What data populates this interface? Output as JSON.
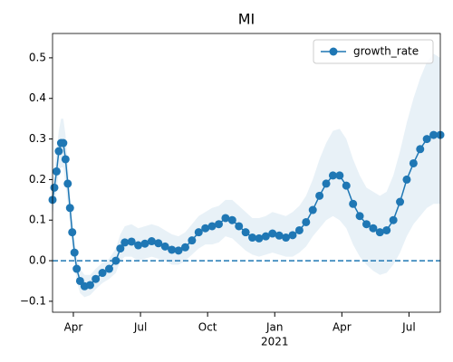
{
  "chart_data": {
    "type": "line",
    "title": "MI",
    "x": [
      0.07,
      0.15,
      0.25,
      0.35,
      0.45,
      0.55,
      0.65,
      0.75,
      0.85,
      0.95,
      1.05,
      1.15,
      1.3,
      1.5,
      1.75,
      2.0,
      2.3,
      2.6,
      2.9,
      3.1,
      3.3,
      3.6,
      3.9,
      4.2,
      4.5,
      4.8,
      5.1,
      5.4,
      5.7,
      6.0,
      6.3,
      6.6,
      6.9,
      7.2,
      7.5,
      7.8,
      8.1,
      8.4,
      8.7,
      9.0,
      9.3,
      9.6,
      9.9,
      10.2,
      10.5,
      10.8,
      11.1,
      11.4,
      11.7,
      12.0,
      12.3,
      12.6,
      12.9,
      13.2,
      13.5,
      13.8,
      14.1,
      14.4,
      14.7,
      15.0,
      15.3,
      15.6,
      15.9,
      16.2,
      16.5,
      16.8,
      17.1,
      17.4
    ],
    "series": [
      {
        "name": "growth_rate",
        "color": "#1f77b4",
        "values": [
          0.15,
          0.18,
          0.22,
          0.27,
          0.29,
          0.29,
          0.25,
          0.19,
          0.13,
          0.07,
          0.02,
          -0.02,
          -0.05,
          -0.063,
          -0.06,
          -0.045,
          -0.03,
          -0.02,
          0.0,
          0.03,
          0.045,
          0.047,
          0.038,
          0.042,
          0.048,
          0.043,
          0.035,
          0.027,
          0.025,
          0.033,
          0.05,
          0.07,
          0.08,
          0.085,
          0.09,
          0.105,
          0.1,
          0.085,
          0.07,
          0.057,
          0.055,
          0.06,
          0.067,
          0.062,
          0.057,
          0.063,
          0.075,
          0.095,
          0.125,
          0.16,
          0.19,
          0.21,
          0.21,
          0.185,
          0.14,
          0.11,
          0.09,
          0.08,
          0.07,
          0.075,
          0.1,
          0.145,
          0.2,
          0.24,
          0.275,
          0.3,
          0.31,
          0.31
        ]
      }
    ],
    "band": {
      "color": "#1f77b4",
      "upper": [
        0.19,
        0.22,
        0.27,
        0.32,
        0.35,
        0.35,
        0.31,
        0.24,
        0.17,
        0.1,
        0.05,
        0.01,
        -0.02,
        -0.035,
        -0.035,
        -0.02,
        -0.005,
        0.005,
        0.03,
        0.065,
        0.085,
        0.09,
        0.08,
        0.085,
        0.09,
        0.085,
        0.075,
        0.065,
        0.06,
        0.07,
        0.09,
        0.11,
        0.12,
        0.13,
        0.135,
        0.15,
        0.15,
        0.135,
        0.12,
        0.105,
        0.105,
        0.11,
        0.12,
        0.115,
        0.11,
        0.12,
        0.135,
        0.16,
        0.2,
        0.25,
        0.29,
        0.32,
        0.325,
        0.3,
        0.25,
        0.21,
        0.18,
        0.17,
        0.16,
        0.17,
        0.21,
        0.27,
        0.34,
        0.4,
        0.45,
        0.49,
        0.51,
        0.5
      ],
      "lower": [
        0.11,
        0.14,
        0.17,
        0.22,
        0.23,
        0.23,
        0.19,
        0.14,
        0.09,
        0.04,
        -0.01,
        -0.05,
        -0.08,
        -0.09,
        -0.085,
        -0.07,
        -0.055,
        -0.045,
        -0.03,
        0.0,
        0.01,
        0.01,
        0.0,
        0.005,
        0.01,
        0.005,
        0.0,
        -0.01,
        -0.01,
        0.0,
        0.015,
        0.03,
        0.04,
        0.04,
        0.045,
        0.06,
        0.055,
        0.04,
        0.025,
        0.015,
        0.01,
        0.015,
        0.02,
        0.015,
        0.01,
        0.01,
        0.02,
        0.035,
        0.06,
        0.08,
        0.1,
        0.11,
        0.1,
        0.08,
        0.04,
        0.01,
        -0.01,
        -0.025,
        -0.035,
        -0.03,
        -0.01,
        0.02,
        0.06,
        0.09,
        0.11,
        0.13,
        0.14,
        0.14
      ]
    },
    "hline": 0,
    "xlim": [
      0.07,
      17.4
    ],
    "xticks": [
      {
        "value": 1,
        "label": "Apr"
      },
      {
        "value": 4,
        "label": "Jul"
      },
      {
        "value": 7,
        "label": "Oct"
      },
      {
        "value": 10,
        "label": "Jan"
      },
      {
        "value": 13,
        "label": "Apr"
      },
      {
        "value": 16,
        "label": "Jul"
      }
    ],
    "x_sublabel": "2021",
    "ylim": [
      -0.127,
      0.56
    ],
    "yticks": [
      {
        "value": -0.1,
        "label": "−0.1"
      },
      {
        "value": 0,
        "label": "0.0"
      },
      0.1,
      0.2,
      0.3,
      0.4,
      0.5
    ],
    "legend": "upper right"
  }
}
